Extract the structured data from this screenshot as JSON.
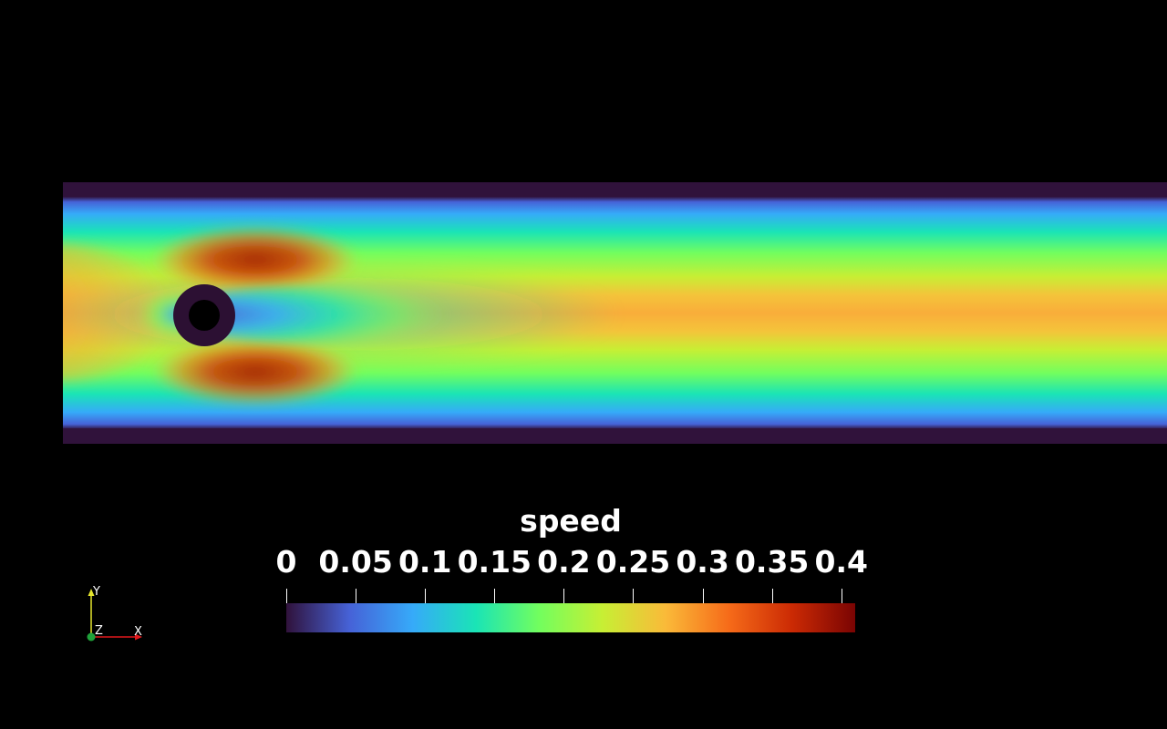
{
  "colorbar": {
    "title": "speed",
    "ticks": [
      "0",
      "0.05",
      "0.1",
      "0.15",
      "0.2",
      "0.25",
      "0.3",
      "0.35",
      "0.4"
    ],
    "range": [
      0,
      0.41
    ],
    "colors": [
      "#30123b",
      "#4662d7",
      "#36aaf9",
      "#1ae4b6",
      "#72fe5e",
      "#c7ef34",
      "#faba39",
      "#f66b19",
      "#cb2a04",
      "#7a0403"
    ]
  },
  "axes": {
    "x_label": "X",
    "y_label": "Y",
    "z_label": "Z",
    "x_color": "#e0191c",
    "y_color": "#e6e62d",
    "z_color": "#1fa23a"
  },
  "scene": {
    "background": "#000000",
    "wall_color": "#2f1538",
    "obstacle_color": "#2c1033",
    "obstacle_core_color": "#000000"
  }
}
